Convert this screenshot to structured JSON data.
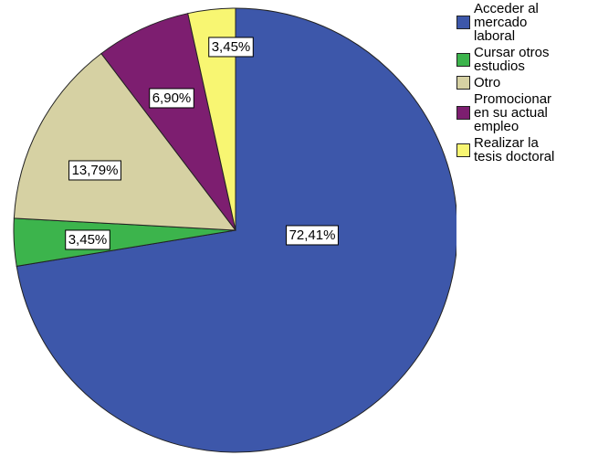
{
  "chart_data": {
    "type": "pie",
    "categories": [
      "Acceder al\nmercado\nlaboral",
      "Cursar otros\nestudios",
      "Otro",
      "Promocionar\nen su actual\nempleo",
      "Realizar la\ntesis doctoral"
    ],
    "values": [
      72.41,
      3.45,
      13.79,
      6.9,
      3.45
    ],
    "value_labels": [
      "72,41%",
      "3,45%",
      "13,79%",
      "6,90%",
      "3,45%"
    ],
    "colors": [
      "#3d57aa",
      "#3cb44c",
      "#d6d1a3",
      "#7d1e70",
      "#f8f672"
    ],
    "legend": "right"
  }
}
